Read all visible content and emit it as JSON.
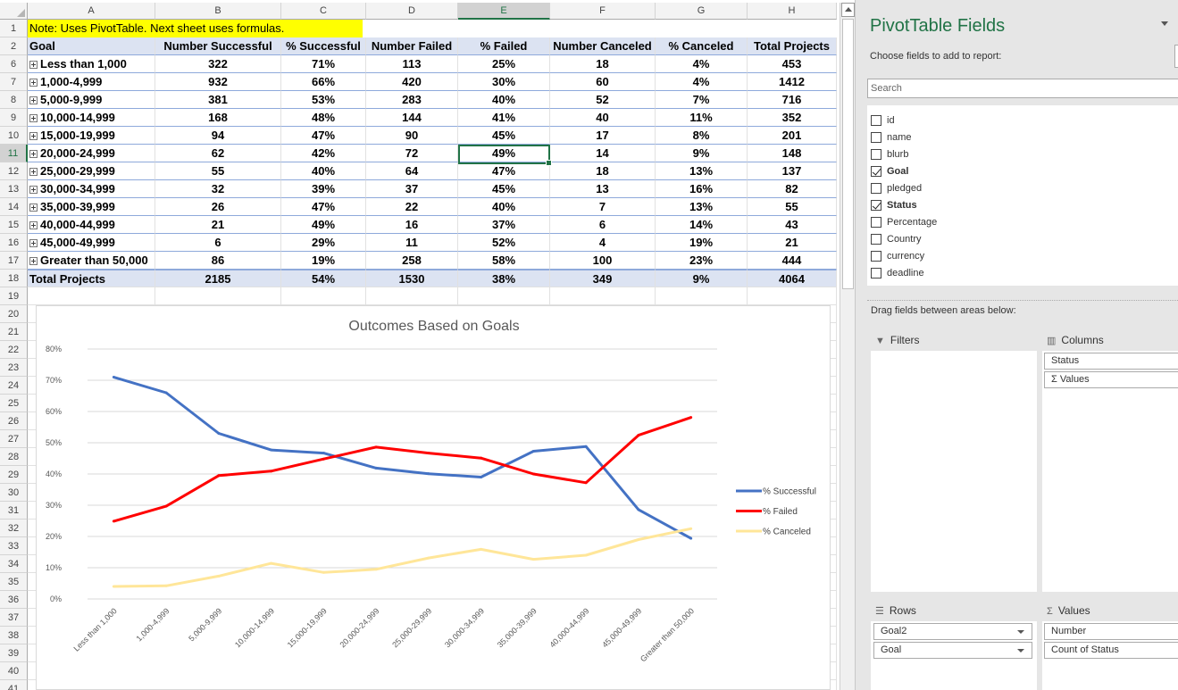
{
  "sheet": {
    "columns": [
      "A",
      "B",
      "C",
      "D",
      "E",
      "F",
      "G",
      "H"
    ],
    "selected_column": "E",
    "row_numbers": [
      "1",
      "2",
      "6",
      "7",
      "8",
      "9",
      "10",
      "11",
      "12",
      "13",
      "14",
      "15",
      "16",
      "17",
      "18",
      "19",
      "20",
      "21",
      "22",
      "23",
      "24",
      "25",
      "26",
      "27",
      "28",
      "29",
      "30",
      "31",
      "32",
      "33",
      "34",
      "35",
      "36",
      "37",
      "38",
      "39",
      "40",
      "41"
    ],
    "selected_row": "11",
    "note": "Note: Uses PivotTable. Next sheet uses formulas.",
    "headers": [
      "Goal",
      "Number Successful",
      "% Successful",
      "Number Failed",
      "% Failed",
      "Number Canceled",
      "% Canceled",
      "Total Projects"
    ],
    "rows": [
      [
        "Less than 1,000",
        "322",
        "71%",
        "113",
        "25%",
        "18",
        "4%",
        "453"
      ],
      [
        "1,000-4,999",
        "932",
        "66%",
        "420",
        "30%",
        "60",
        "4%",
        "1412"
      ],
      [
        "5,000-9,999",
        "381",
        "53%",
        "283",
        "40%",
        "52",
        "7%",
        "716"
      ],
      [
        "10,000-14,999",
        "168",
        "48%",
        "144",
        "41%",
        "40",
        "11%",
        "352"
      ],
      [
        "15,000-19,999",
        "94",
        "47%",
        "90",
        "45%",
        "17",
        "8%",
        "201"
      ],
      [
        "20,000-24,999",
        "62",
        "42%",
        "72",
        "49%",
        "14",
        "9%",
        "148"
      ],
      [
        "25,000-29,999",
        "55",
        "40%",
        "64",
        "47%",
        "18",
        "13%",
        "137"
      ],
      [
        "30,000-34,999",
        "32",
        "39%",
        "37",
        "45%",
        "13",
        "16%",
        "82"
      ],
      [
        "35,000-39,999",
        "26",
        "47%",
        "22",
        "40%",
        "7",
        "13%",
        "55"
      ],
      [
        "40,000-44,999",
        "21",
        "49%",
        "16",
        "37%",
        "6",
        "14%",
        "43"
      ],
      [
        "45,000-49,999",
        "6",
        "29%",
        "11",
        "52%",
        "4",
        "19%",
        "21"
      ],
      [
        "Greater than 50,000",
        "86",
        "19%",
        "258",
        "58%",
        "100",
        "23%",
        "444"
      ]
    ],
    "total_row": [
      "Total Projects",
      "2185",
      "54%",
      "1530",
      "38%",
      "349",
      "9%",
      "4064"
    ]
  },
  "chart_data": {
    "type": "line",
    "title": "Outcomes Based on Goals",
    "categories": [
      "Less than 1,000",
      "1,000-4,999",
      "5,000-9,999",
      "10,000-14,999",
      "15,000-19,999",
      "20,000-24,999",
      "25,000-29,999",
      "30,000-34,999",
      "35,000-39,999",
      "40,000-44,999",
      "45,000-49,999",
      "Greater than 50,000"
    ],
    "y_tick_labels": [
      "0%",
      "10%",
      "20%",
      "30%",
      "40%",
      "50%",
      "60%",
      "70%",
      "80%"
    ],
    "ylim": [
      0,
      0.8
    ],
    "grid": true,
    "legend_position": "right",
    "series": [
      {
        "name": "% Successful",
        "color": "#4472c4",
        "values": [
          0.71,
          0.66,
          0.53,
          0.477,
          0.467,
          0.419,
          0.401,
          0.39,
          0.473,
          0.488,
          0.286,
          0.194
        ]
      },
      {
        "name": "% Failed",
        "color": "#ff0000",
        "values": [
          0.249,
          0.297,
          0.395,
          0.409,
          0.448,
          0.486,
          0.467,
          0.451,
          0.4,
          0.372,
          0.524,
          0.581
        ]
      },
      {
        "name": "% Canceled",
        "color": "#ffe699",
        "values": [
          0.04,
          0.042,
          0.073,
          0.114,
          0.085,
          0.095,
          0.131,
          0.159,
          0.127,
          0.14,
          0.19,
          0.225
        ]
      }
    ]
  },
  "pivot": {
    "title": "PivotTable Fields",
    "subtitle": "Choose fields to add to report:",
    "search_placeholder": "Search",
    "fields": [
      {
        "label": "id",
        "checked": false
      },
      {
        "label": "name",
        "checked": false
      },
      {
        "label": "blurb",
        "checked": false
      },
      {
        "label": "Goal",
        "checked": true
      },
      {
        "label": "pledged",
        "checked": false
      },
      {
        "label": "Status",
        "checked": true
      },
      {
        "label": "Percentage",
        "checked": false
      },
      {
        "label": "Country",
        "checked": false
      },
      {
        "label": "currency",
        "checked": false
      },
      {
        "label": "deadline",
        "checked": false
      }
    ],
    "drag_label": "Drag fields between areas below:",
    "areas": {
      "filters": {
        "label": "Filters"
      },
      "columns": {
        "label": "Columns",
        "items": [
          "Status",
          "Values"
        ]
      },
      "rows": {
        "label": "Rows",
        "items": [
          "Goal2",
          "Goal"
        ]
      },
      "values": {
        "label": "Values",
        "items": [
          "Number",
          "Count of Status"
        ]
      }
    }
  }
}
